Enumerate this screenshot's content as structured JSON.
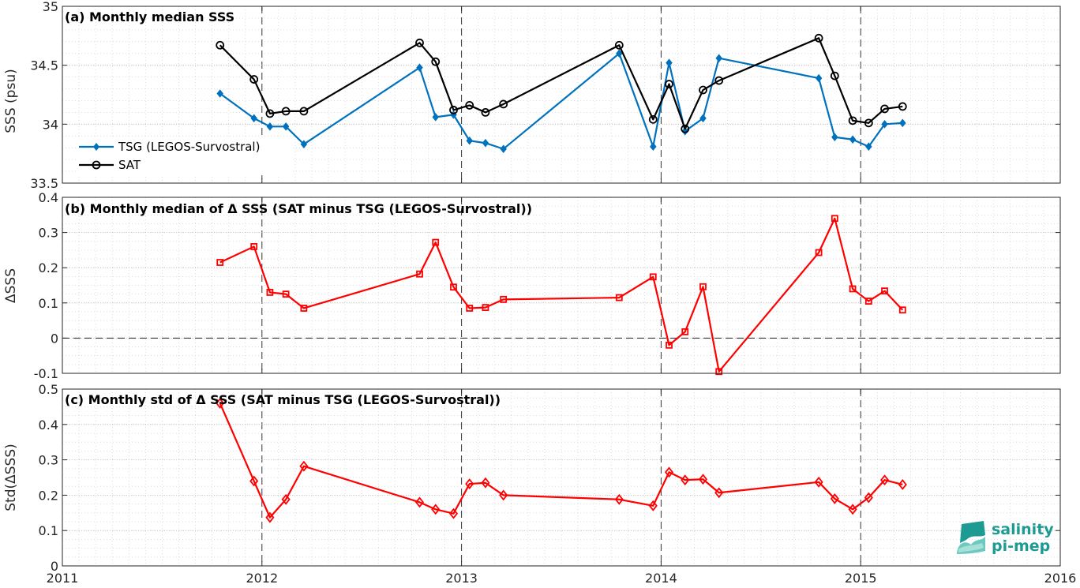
{
  "chart_data": [
    {
      "type": "line",
      "title": "(a) Monthly median SSS",
      "xlabel": "",
      "ylabel": "SSS (psu)",
      "xlim": [
        2011,
        2016
      ],
      "ylim": [
        33.5,
        35
      ],
      "yticks": [
        "33.5",
        "34",
        "34.5",
        "35"
      ],
      "legend": "left",
      "series": [
        {
          "name": "TSG (LEGOS-Survostral)",
          "color": "#0072BD",
          "marker": "diamond",
          "x": [
            2011.79,
            2011.96,
            2012.04,
            2012.12,
            2012.21,
            2012.79,
            2012.87,
            2012.96,
            2013.04,
            2013.12,
            2013.21,
            2013.79,
            2013.96,
            2014.04,
            2014.12,
            2014.21,
            2014.29,
            2014.79,
            2014.87,
            2014.96,
            2015.04,
            2015.12,
            2015.21
          ],
          "y": [
            34.26,
            34.05,
            33.98,
            33.98,
            33.83,
            34.48,
            34.06,
            34.08,
            33.86,
            33.84,
            33.79,
            34.6,
            33.81,
            34.52,
            33.94,
            34.05,
            34.56,
            34.39,
            33.89,
            33.87,
            33.81,
            34.0,
            34.01
          ]
        },
        {
          "name": "SAT",
          "color": "#000000",
          "marker": "circle",
          "x": [
            2011.79,
            2011.96,
            2012.04,
            2012.12,
            2012.21,
            2012.79,
            2012.87,
            2012.96,
            2013.04,
            2013.12,
            2013.21,
            2013.79,
            2013.96,
            2014.04,
            2014.12,
            2014.21,
            2014.29,
            2014.79,
            2014.87,
            2014.96,
            2015.04,
            2015.12,
            2015.21
          ],
          "y": [
            34.67,
            34.38,
            34.09,
            34.11,
            34.11,
            34.69,
            34.53,
            34.12,
            34.16,
            34.1,
            34.17,
            34.67,
            34.04,
            34.34,
            33.96,
            34.29,
            34.37,
            34.73,
            34.41,
            34.03,
            34.01,
            34.13,
            34.15
          ]
        }
      ]
    },
    {
      "type": "line",
      "title": "(b) Monthly median of Δ SSS (SAT minus TSG (LEGOS-Survostral))",
      "xlabel": "",
      "ylabel": "ΔSSS",
      "xlim": [
        2011,
        2016
      ],
      "ylim": [
        -0.1,
        0.4
      ],
      "yticks": [
        "-0.1",
        "0",
        "0.1",
        "0.2",
        "0.3",
        "0.4"
      ],
      "series": [
        {
          "color": "#FF0000",
          "marker": "square",
          "x": [
            2011.79,
            2011.96,
            2012.04,
            2012.12,
            2012.21,
            2012.79,
            2012.87,
            2012.96,
            2013.04,
            2013.12,
            2013.21,
            2013.79,
            2013.96,
            2014.04,
            2014.12,
            2014.21,
            2014.29,
            2014.79,
            2014.87,
            2014.96,
            2015.04,
            2015.12,
            2015.21
          ],
          "y": [
            0.215,
            0.26,
            0.13,
            0.125,
            0.085,
            0.182,
            0.272,
            0.145,
            0.085,
            0.087,
            0.11,
            0.115,
            0.174,
            -0.02,
            0.018,
            0.146,
            -0.095,
            0.243,
            0.34,
            0.14,
            0.105,
            0.134,
            0.08
          ]
        }
      ]
    },
    {
      "type": "line",
      "title": "(c) Monthly std of Δ SSS (SAT minus TSG (LEGOS-Survostral))",
      "xlabel": "",
      "ylabel": "Std(ΔSSS)",
      "xlim": [
        2011,
        2016
      ],
      "ylim": [
        0,
        0.5
      ],
      "xticks": [
        "2011",
        "2012",
        "2013",
        "2014",
        "2015",
        "2016"
      ],
      "yticks": [
        "0",
        "0.1",
        "0.2",
        "0.3",
        "0.4",
        "0.5"
      ],
      "series": [
        {
          "color": "#FF0000",
          "marker": "diamond",
          "x": [
            2011.79,
            2011.96,
            2012.04,
            2012.12,
            2012.21,
            2012.79,
            2012.87,
            2012.96,
            2013.04,
            2013.12,
            2013.21,
            2013.79,
            2013.96,
            2014.04,
            2014.12,
            2014.21,
            2014.29,
            2014.79,
            2014.87,
            2014.96,
            2015.04,
            2015.12,
            2015.21
          ],
          "y": [
            0.46,
            0.24,
            0.137,
            0.188,
            0.282,
            0.18,
            0.16,
            0.148,
            0.232,
            0.235,
            0.2,
            0.188,
            0.17,
            0.265,
            0.243,
            0.245,
            0.207,
            0.237,
            0.19,
            0.16,
            0.193,
            0.243,
            0.23
          ]
        }
      ]
    }
  ],
  "logo": {
    "line1": "salinity",
    "line2": "pi-mep",
    "color": "#1d9a92"
  }
}
